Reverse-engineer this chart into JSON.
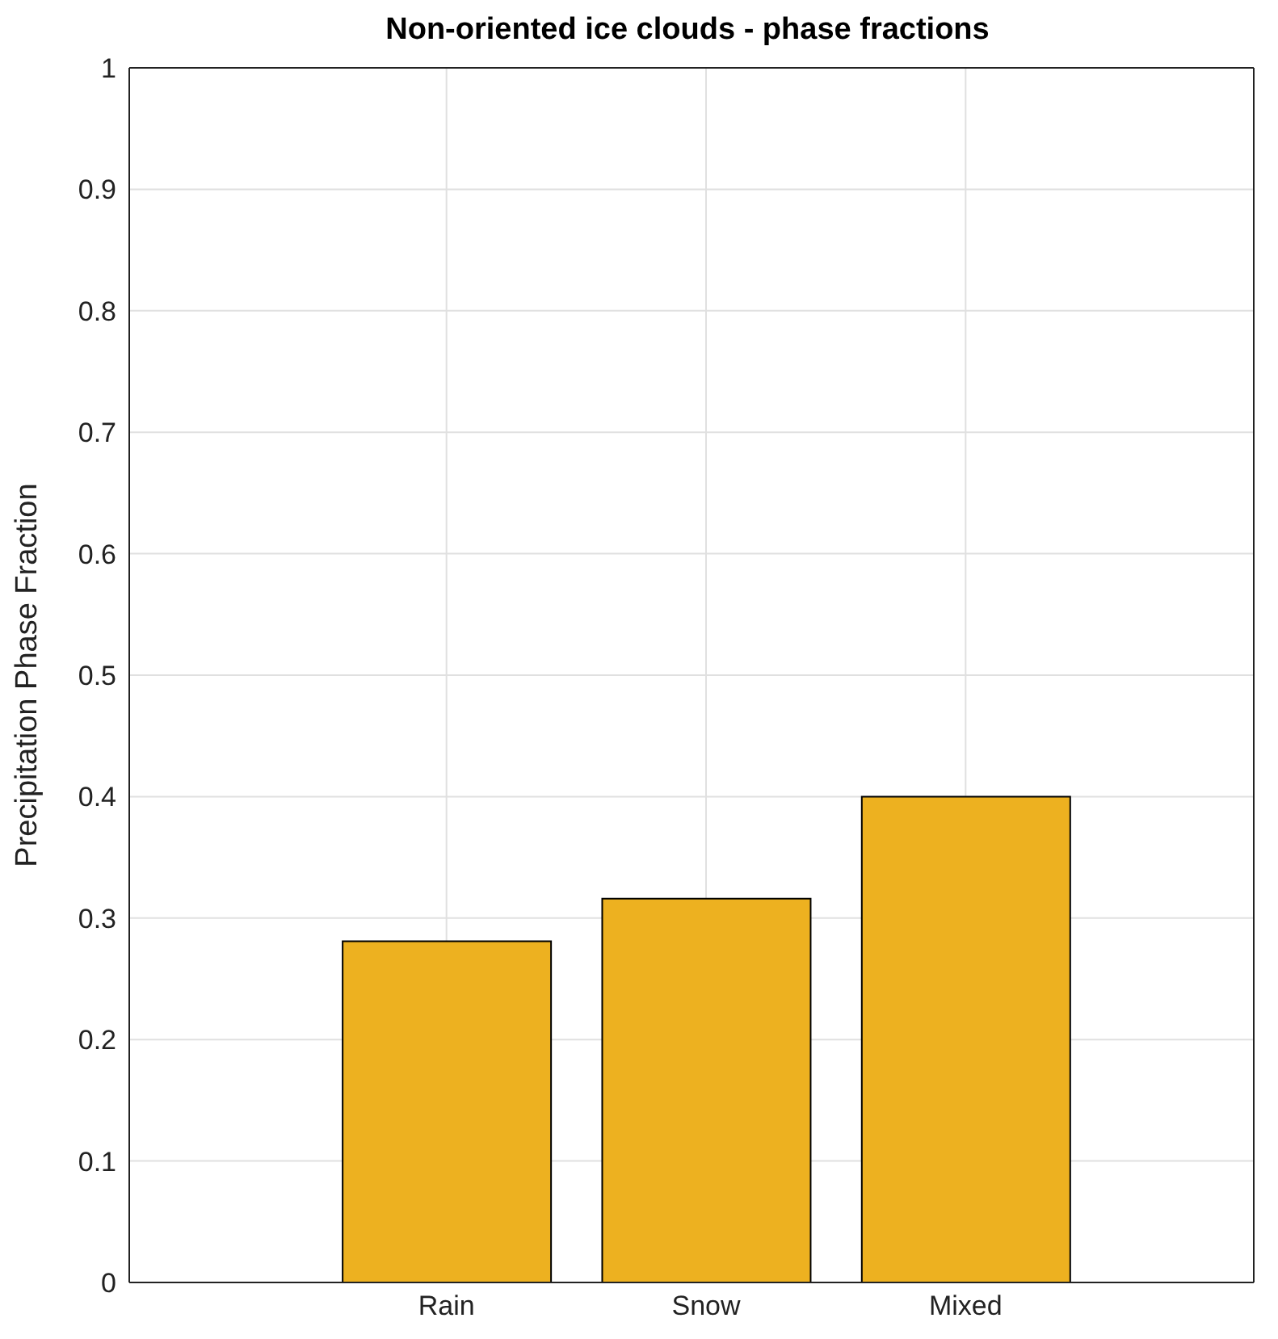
{
  "chart_data": {
    "type": "bar",
    "title": "Non-oriented ice clouds - phase fractions",
    "ylabel": "Precipitation Phase Fraction",
    "categories": [
      "Rain",
      "Snow",
      "Mixed"
    ],
    "values": [
      0.281,
      0.316,
      0.4
    ],
    "color": "#edb120",
    "ylim": [
      0,
      1
    ],
    "yticks": [
      0,
      0.1,
      0.2,
      0.3,
      0.4,
      0.5,
      0.6,
      0.7,
      0.8,
      0.9,
      1
    ],
    "grid": true
  }
}
